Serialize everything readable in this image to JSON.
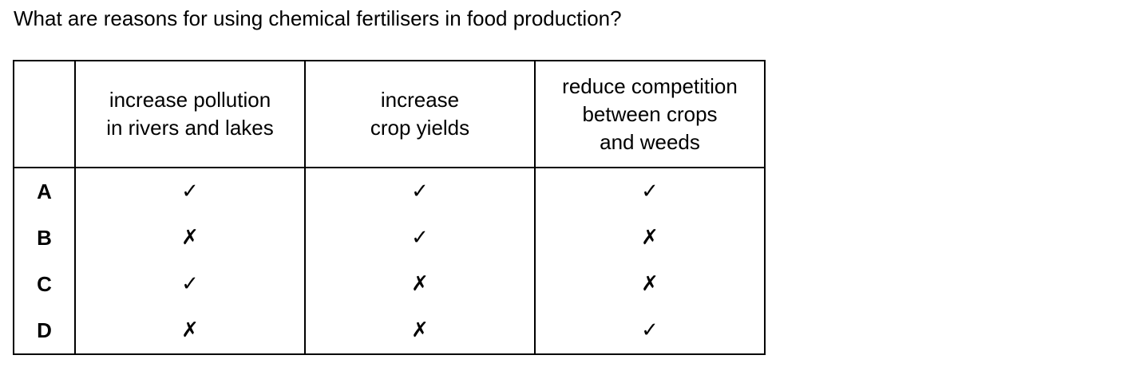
{
  "question": "What are reasons for using chemical fertilisers in food production?",
  "table": {
    "corner": "",
    "headers": [
      "increase pollution\nin rivers and lakes",
      "increase\ncrop yields",
      "reduce competition\nbetween crops\nand weeds"
    ],
    "rows": [
      {
        "key": "A",
        "marks": [
          "✓",
          "✓",
          "✓"
        ]
      },
      {
        "key": "B",
        "marks": [
          "✗",
          "✓",
          "✗"
        ]
      },
      {
        "key": "C",
        "marks": [
          "✓",
          "✗",
          "✗"
        ]
      },
      {
        "key": "D",
        "marks": [
          "✗",
          "✗",
          "✓"
        ]
      }
    ]
  }
}
